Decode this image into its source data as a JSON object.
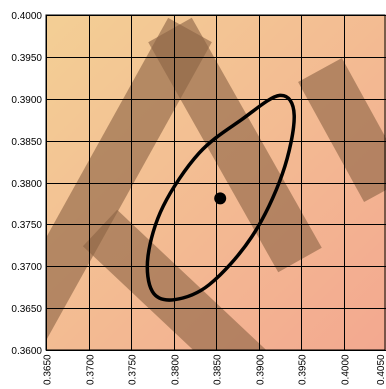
{
  "chart_data": {
    "type": "scatter",
    "title": "",
    "xlabel": "",
    "ylabel": "",
    "xlim": [
      0.365,
      0.405
    ],
    "ylim": [
      0.36,
      0.4
    ],
    "x_ticks": [
      0.365,
      0.37,
      0.375,
      0.38,
      0.385,
      0.39,
      0.395,
      0.4,
      0.405
    ],
    "y_ticks": [
      0.36,
      0.365,
      0.37,
      0.375,
      0.38,
      0.385,
      0.39,
      0.395,
      0.4
    ],
    "x_tick_labels": [
      "0.3650",
      "0.3700",
      "0.3750",
      "0.3800",
      "0.3850",
      "0.3900",
      "0.3950",
      "0.4000",
      "0.4050"
    ],
    "y_tick_labels": [
      "0.3600",
      "0.3650",
      "0.3700",
      "0.3750",
      "0.3800",
      "0.3850",
      "0.3900",
      "0.3950",
      "0.4000"
    ],
    "grid": true,
    "point": {
      "x": 0.3855,
      "y": 0.3781
    },
    "ellipse_outline": [
      [
        0.388,
        0.3875
      ],
      [
        0.3925,
        0.3904
      ],
      [
        0.3942,
        0.388
      ],
      [
        0.3928,
        0.381
      ],
      [
        0.3892,
        0.3735
      ],
      [
        0.3842,
        0.3678
      ],
      [
        0.38,
        0.366
      ],
      [
        0.3775,
        0.367
      ],
      [
        0.377,
        0.3712
      ],
      [
        0.3788,
        0.3772
      ],
      [
        0.383,
        0.3835
      ]
    ],
    "background_gradient": [
      "#f3cf95",
      "#f3a890"
    ],
    "watermark_color": "#8c6446"
  }
}
